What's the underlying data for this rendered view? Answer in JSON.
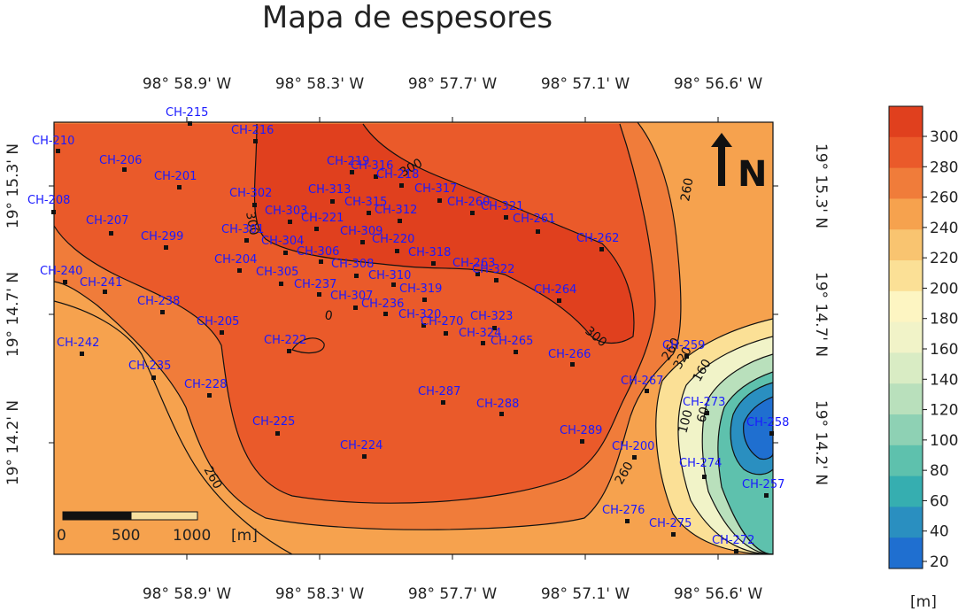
{
  "title": "Mapa de espesores",
  "map": {
    "x_ticks_top": [
      "98° 58.9' W",
      "98° 58.3' W",
      "98° 57.7' W",
      "98° 57.1' W",
      "98° 56.6' W"
    ],
    "x_ticks_bottom": [
      "98° 58.9' W",
      "98° 58.3' W",
      "98° 57.7' W",
      "98° 57.1' W",
      "98° 56.6' W"
    ],
    "y_ticks_left": [
      "19° 15.3' N",
      "19° 14.7' N",
      "19° 14.2' N"
    ],
    "y_ticks_right": [
      "19° 15.3' N",
      "19° 14.7' N",
      "19° 14.2' N"
    ],
    "north_arrow": "N",
    "scale_bar": {
      "labels": [
        "0",
        "500",
        "1000"
      ],
      "unit": "[m]"
    },
    "contour_labels": [
      "260",
      "300",
      "300",
      "300",
      "0",
      "260",
      "260",
      "320",
      "160",
      "100",
      "60",
      "260"
    ],
    "wells": [
      "CH-215",
      "CH-210",
      "CH-216",
      "CH-206",
      "CH-201",
      "CH-219",
      "CH-316",
      "CH-218",
      "CH-317",
      "CH-208",
      "CH-302",
      "CH-313",
      "CH-315",
      "CH-260",
      "CH-321",
      "CH-303",
      "CH-312",
      "CH-221",
      "CH-261",
      "CH-207",
      "CH-301",
      "CH-309",
      "CH-262",
      "CH-299",
      "CH-304",
      "CH-306",
      "CH-220",
      "CH-318",
      "CH-204",
      "CH-308",
      "CH-263",
      "CH-322",
      "CH-240",
      "CH-305",
      "CH-310",
      "CH-241",
      "CH-237",
      "CH-319",
      "CH-264",
      "CH-307",
      "CH-236",
      "CH-238",
      "CH-320",
      "CH-323",
      "CH-270",
      "CH-205",
      "CH-324",
      "CH-222",
      "CH-265",
      "CH-242",
      "CH-259",
      "CH-266",
      "CH-235",
      "CH-267",
      "CH-228",
      "CH-287",
      "CH-288",
      "CH-273",
      "CH-225",
      "CH-258",
      "CH-289",
      "CH-224",
      "CH-200",
      "CH-274",
      "CH-257",
      "CH-276",
      "CH-275",
      "CH-272"
    ]
  },
  "colorbar": {
    "labels": [
      "300",
      "280",
      "260",
      "240",
      "220",
      "200",
      "180",
      "160",
      "140",
      "120",
      "100",
      "80",
      "60",
      "40",
      "20"
    ],
    "colors": [
      "#e0401e",
      "#ea5a2a",
      "#f07c3a",
      "#f6a24e",
      "#f9c470",
      "#fbe096",
      "#fdf5c2",
      "#f1f3c8",
      "#d9ecc4",
      "#b9e0bc",
      "#8ed1b4",
      "#5ec1ad",
      "#36aeb0",
      "#2a8fc0",
      "#1f6fd0"
    ],
    "unit": "[m]"
  }
}
